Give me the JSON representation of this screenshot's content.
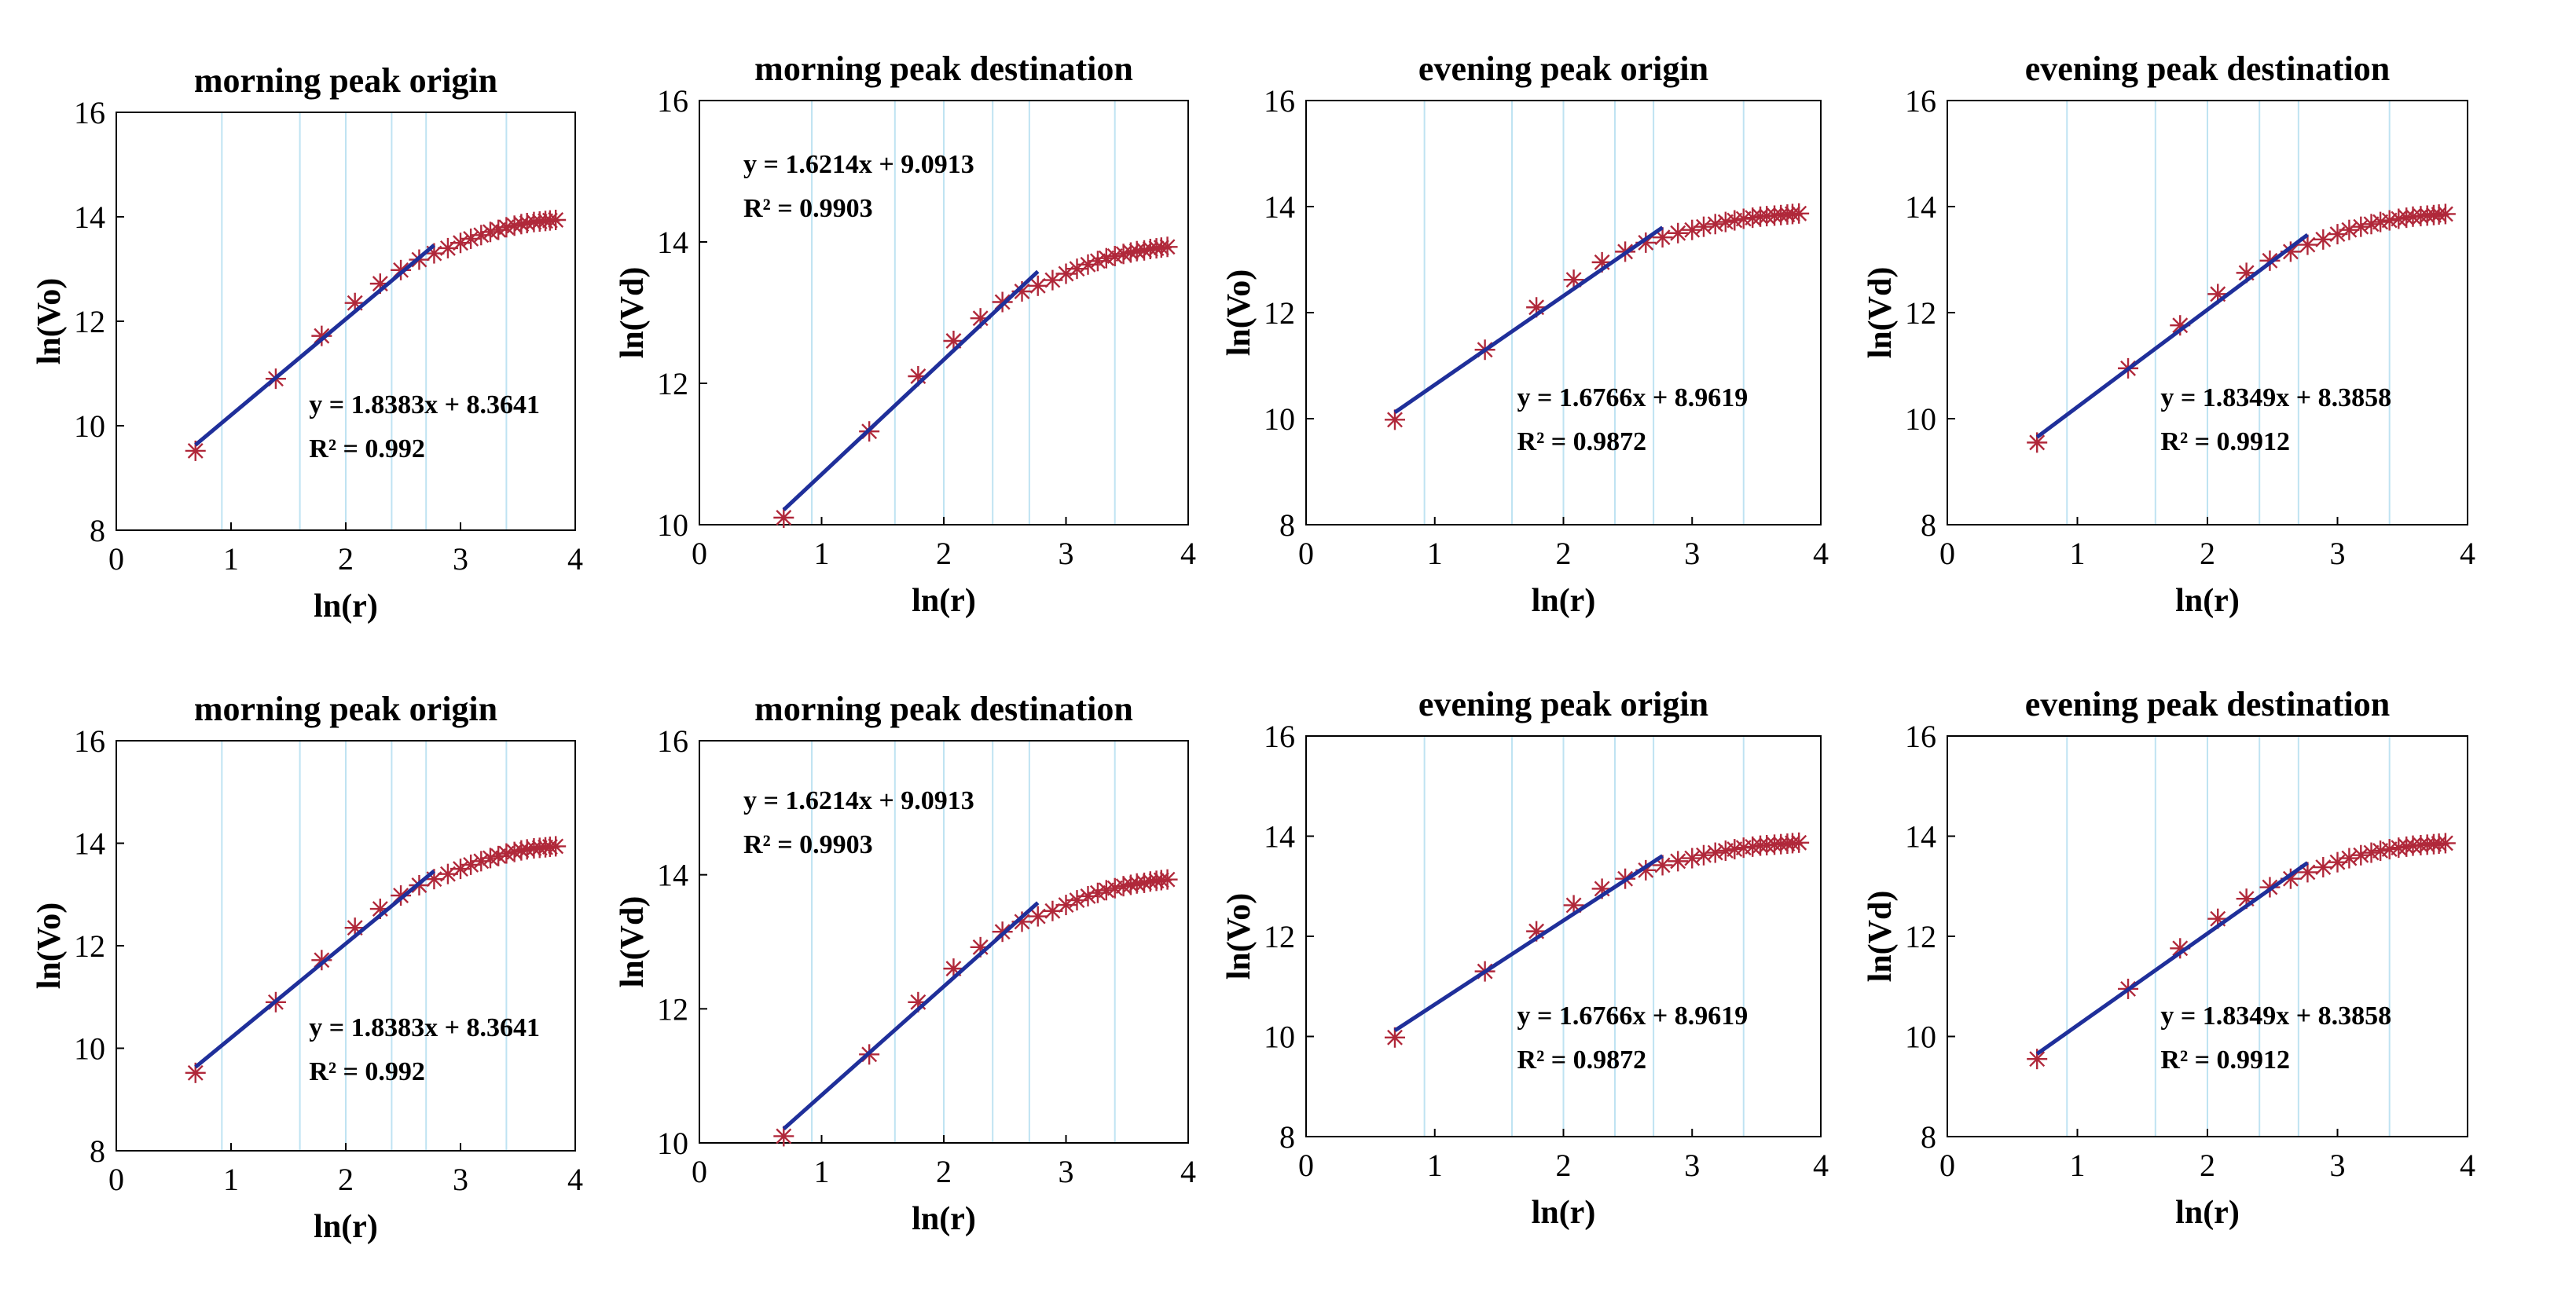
{
  "colors": {
    "fit_line": "#1f2f9a",
    "markers": "#b0283a",
    "grid": "#bfe3f2",
    "axes": "#000000"
  },
  "chart_data": [
    {
      "type": "scatter",
      "title": "morning peak origin",
      "xlabel": "ln(r)",
      "ylabel": "ln(Vo)",
      "xlim": [
        0,
        4
      ],
      "ylim": [
        8,
        16
      ],
      "xticks": [
        "0",
        "1",
        "2",
        "3",
        "4"
      ],
      "yticks": [
        "8",
        "10",
        "12",
        "14",
        "16"
      ],
      "grid_x": [
        0.92,
        1.6,
        2.0,
        2.4,
        2.7,
        3.4
      ],
      "equation": "y = 1.8383x + 8.3641",
      "r2": "R² = 0.992",
      "fit": {
        "slope": 1.8383,
        "intercept": 8.3641,
        "x_range": [
          0.69,
          2.77
        ]
      },
      "points": [
        [
          0.69,
          9.52
        ],
        [
          1.39,
          10.9
        ],
        [
          1.79,
          11.72
        ],
        [
          2.08,
          12.35
        ],
        [
          2.3,
          12.72
        ],
        [
          2.48,
          12.98
        ],
        [
          2.64,
          13.18
        ],
        [
          2.77,
          13.3
        ],
        [
          2.89,
          13.4
        ],
        [
          3.0,
          13.5
        ],
        [
          3.09,
          13.58
        ],
        [
          3.18,
          13.65
        ],
        [
          3.26,
          13.71
        ],
        [
          3.33,
          13.75
        ],
        [
          3.4,
          13.8
        ],
        [
          3.47,
          13.83
        ],
        [
          3.53,
          13.86
        ],
        [
          3.58,
          13.88
        ],
        [
          3.64,
          13.9
        ],
        [
          3.69,
          13.91
        ],
        [
          3.74,
          13.92
        ],
        [
          3.78,
          13.93
        ],
        [
          3.83,
          13.94
        ]
      ]
    },
    {
      "type": "scatter",
      "title": "morning peak destination",
      "xlabel": "ln(r)",
      "ylabel": "ln(Vd)",
      "xlim": [
        0,
        4
      ],
      "ylim": [
        10,
        16
      ],
      "xticks": [
        "0",
        "1",
        "2",
        "3",
        "4"
      ],
      "yticks": [
        "10",
        "12",
        "14",
        "16"
      ],
      "grid_x": [
        0.92,
        1.6,
        2.0,
        2.4,
        2.7,
        3.4
      ],
      "equation": "y = 1.6214x + 9.0913",
      "r2": "R² = 0.9903",
      "fit": {
        "slope": 1.6214,
        "intercept": 9.0913,
        "x_range": [
          0.69,
          2.77
        ]
      },
      "points": [
        [
          0.69,
          10.1
        ],
        [
          1.39,
          11.32
        ],
        [
          1.79,
          12.1
        ],
        [
          2.08,
          12.6
        ],
        [
          2.3,
          12.92
        ],
        [
          2.48,
          13.15
        ],
        [
          2.64,
          13.3
        ],
        [
          2.77,
          13.38
        ],
        [
          2.89,
          13.46
        ],
        [
          3.0,
          13.55
        ],
        [
          3.09,
          13.62
        ],
        [
          3.18,
          13.68
        ],
        [
          3.26,
          13.73
        ],
        [
          3.33,
          13.77
        ],
        [
          3.4,
          13.8
        ],
        [
          3.47,
          13.83
        ],
        [
          3.53,
          13.85
        ],
        [
          3.58,
          13.87
        ],
        [
          3.64,
          13.88
        ],
        [
          3.69,
          13.9
        ],
        [
          3.74,
          13.91
        ],
        [
          3.78,
          13.92
        ],
        [
          3.83,
          13.93
        ]
      ]
    },
    {
      "type": "scatter",
      "title": "evening peak origin",
      "xlabel": "ln(r)",
      "ylabel": "ln(Vo)",
      "xlim": [
        0,
        4
      ],
      "ylim": [
        8,
        16
      ],
      "xticks": [
        "0",
        "1",
        "2",
        "3",
        "4"
      ],
      "yticks": [
        "8",
        "10",
        "12",
        "14",
        "16"
      ],
      "grid_x": [
        0.92,
        1.6,
        2.0,
        2.4,
        2.7,
        3.4
      ],
      "equation": "y = 1.6766x + 8.9619",
      "r2": "R² = 0.9872",
      "fit": {
        "slope": 1.6766,
        "intercept": 8.9619,
        "x_range": [
          0.69,
          2.77
        ]
      },
      "points": [
        [
          0.69,
          9.98
        ],
        [
          1.39,
          11.3
        ],
        [
          1.79,
          12.1
        ],
        [
          2.08,
          12.62
        ],
        [
          2.3,
          12.95
        ],
        [
          2.48,
          13.15
        ],
        [
          2.64,
          13.32
        ],
        [
          2.77,
          13.42
        ],
        [
          2.89,
          13.5
        ],
        [
          3.0,
          13.56
        ],
        [
          3.09,
          13.62
        ],
        [
          3.18,
          13.67
        ],
        [
          3.26,
          13.71
        ],
        [
          3.33,
          13.74
        ],
        [
          3.4,
          13.77
        ],
        [
          3.47,
          13.79
        ],
        [
          3.53,
          13.81
        ],
        [
          3.58,
          13.82
        ],
        [
          3.64,
          13.83
        ],
        [
          3.69,
          13.84
        ],
        [
          3.74,
          13.85
        ],
        [
          3.78,
          13.86
        ],
        [
          3.83,
          13.87
        ]
      ]
    },
    {
      "type": "scatter",
      "title": "evening peak destination",
      "xlabel": "ln(r)",
      "ylabel": "ln(Vd)",
      "xlim": [
        0,
        4
      ],
      "ylim": [
        8,
        16
      ],
      "xticks": [
        "0",
        "1",
        "2",
        "3",
        "4"
      ],
      "yticks": [
        "8",
        "10",
        "12",
        "14",
        "16"
      ],
      "grid_x": [
        0.92,
        1.6,
        2.0,
        2.4,
        2.7,
        3.4
      ],
      "equation": "y = 1.8349x + 8.3858",
      "r2": "R² = 0.9912",
      "fit": {
        "slope": 1.8349,
        "intercept": 8.3858,
        "x_range": [
          0.69,
          2.77
        ]
      },
      "points": [
        [
          0.69,
          9.55
        ],
        [
          1.39,
          10.95
        ],
        [
          1.79,
          11.76
        ],
        [
          2.08,
          12.35
        ],
        [
          2.3,
          12.75
        ],
        [
          2.48,
          12.98
        ],
        [
          2.64,
          13.15
        ],
        [
          2.77,
          13.28
        ],
        [
          2.89,
          13.38
        ],
        [
          3.0,
          13.48
        ],
        [
          3.09,
          13.56
        ],
        [
          3.18,
          13.62
        ],
        [
          3.26,
          13.67
        ],
        [
          3.33,
          13.71
        ],
        [
          3.4,
          13.74
        ],
        [
          3.47,
          13.77
        ],
        [
          3.53,
          13.79
        ],
        [
          3.58,
          13.81
        ],
        [
          3.64,
          13.82
        ],
        [
          3.69,
          13.83
        ],
        [
          3.74,
          13.84
        ],
        [
          3.78,
          13.85
        ],
        [
          3.83,
          13.86
        ]
      ]
    },
    {
      "type": "scatter",
      "title": "morning peak origin",
      "xlabel": "ln(r)",
      "ylabel": "ln(Vo)",
      "xlim": [
        0,
        4
      ],
      "ylim": [
        8,
        16
      ],
      "xticks": [
        "0",
        "1",
        "2",
        "3",
        "4"
      ],
      "yticks": [
        "8",
        "10",
        "12",
        "14",
        "16"
      ],
      "grid_x": [
        0.92,
        1.6,
        2.0,
        2.4,
        2.7,
        3.4
      ],
      "equation": "y = 1.8383x + 8.3641",
      "r2": "R² = 0.992",
      "fit": {
        "slope": 1.8383,
        "intercept": 8.3641,
        "x_range": [
          0.69,
          2.77
        ]
      },
      "points": [
        [
          0.69,
          9.52
        ],
        [
          1.39,
          10.9
        ],
        [
          1.79,
          11.72
        ],
        [
          2.08,
          12.35
        ],
        [
          2.3,
          12.72
        ],
        [
          2.48,
          12.98
        ],
        [
          2.64,
          13.18
        ],
        [
          2.77,
          13.3
        ],
        [
          2.89,
          13.4
        ],
        [
          3.0,
          13.5
        ],
        [
          3.09,
          13.58
        ],
        [
          3.18,
          13.65
        ],
        [
          3.26,
          13.71
        ],
        [
          3.33,
          13.75
        ],
        [
          3.4,
          13.8
        ],
        [
          3.47,
          13.83
        ],
        [
          3.53,
          13.86
        ],
        [
          3.58,
          13.88
        ],
        [
          3.64,
          13.9
        ],
        [
          3.69,
          13.91
        ],
        [
          3.74,
          13.92
        ],
        [
          3.78,
          13.93
        ],
        [
          3.83,
          13.94
        ]
      ]
    },
    {
      "type": "scatter",
      "title": "morning peak destination",
      "xlabel": "ln(r)",
      "ylabel": "ln(Vd)",
      "xlim": [
        0,
        4
      ],
      "ylim": [
        10,
        16
      ],
      "xticks": [
        "0",
        "1",
        "2",
        "3",
        "4"
      ],
      "yticks": [
        "10",
        "12",
        "14",
        "16"
      ],
      "grid_x": [
        0.92,
        1.6,
        2.0,
        2.4,
        2.7,
        3.4
      ],
      "equation": "y = 1.6214x + 9.0913",
      "r2": "R² = 0.9903",
      "fit": {
        "slope": 1.6214,
        "intercept": 9.0913,
        "x_range": [
          0.69,
          2.77
        ]
      },
      "points": [
        [
          0.69,
          10.1
        ],
        [
          1.39,
          11.32
        ],
        [
          1.79,
          12.1
        ],
        [
          2.08,
          12.6
        ],
        [
          2.3,
          12.92
        ],
        [
          2.48,
          13.15
        ],
        [
          2.64,
          13.3
        ],
        [
          2.77,
          13.38
        ],
        [
          2.89,
          13.46
        ],
        [
          3.0,
          13.55
        ],
        [
          3.09,
          13.62
        ],
        [
          3.18,
          13.68
        ],
        [
          3.26,
          13.73
        ],
        [
          3.33,
          13.77
        ],
        [
          3.4,
          13.8
        ],
        [
          3.47,
          13.83
        ],
        [
          3.53,
          13.85
        ],
        [
          3.58,
          13.87
        ],
        [
          3.64,
          13.88
        ],
        [
          3.69,
          13.9
        ],
        [
          3.74,
          13.91
        ],
        [
          3.78,
          13.92
        ],
        [
          3.83,
          13.93
        ]
      ]
    },
    {
      "type": "scatter",
      "title": "evening peak origin",
      "xlabel": "ln(r)",
      "ylabel": "ln(Vo)",
      "xlim": [
        0,
        4
      ],
      "ylim": [
        8,
        16
      ],
      "xticks": [
        "0",
        "1",
        "2",
        "3",
        "4"
      ],
      "yticks": [
        "8",
        "10",
        "12",
        "14",
        "16"
      ],
      "grid_x": [
        0.92,
        1.6,
        2.0,
        2.4,
        2.7,
        3.4
      ],
      "equation": "y = 1.6766x + 8.9619",
      "r2": "R² = 0.9872",
      "fit": {
        "slope": 1.6766,
        "intercept": 8.9619,
        "x_range": [
          0.69,
          2.77
        ]
      },
      "points": [
        [
          0.69,
          9.98
        ],
        [
          1.39,
          11.3
        ],
        [
          1.79,
          12.1
        ],
        [
          2.08,
          12.62
        ],
        [
          2.3,
          12.95
        ],
        [
          2.48,
          13.15
        ],
        [
          2.64,
          13.32
        ],
        [
          2.77,
          13.42
        ],
        [
          2.89,
          13.5
        ],
        [
          3.0,
          13.56
        ],
        [
          3.09,
          13.62
        ],
        [
          3.18,
          13.67
        ],
        [
          3.26,
          13.71
        ],
        [
          3.33,
          13.74
        ],
        [
          3.4,
          13.77
        ],
        [
          3.47,
          13.79
        ],
        [
          3.53,
          13.81
        ],
        [
          3.58,
          13.82
        ],
        [
          3.64,
          13.83
        ],
        [
          3.69,
          13.84
        ],
        [
          3.74,
          13.85
        ],
        [
          3.78,
          13.86
        ],
        [
          3.83,
          13.87
        ]
      ]
    },
    {
      "type": "scatter",
      "title": "evening peak destination",
      "xlabel": "ln(r)",
      "ylabel": "ln(Vd)",
      "xlim": [
        0,
        4
      ],
      "ylim": [
        8,
        16
      ],
      "xticks": [
        "0",
        "1",
        "2",
        "3",
        "4"
      ],
      "yticks": [
        "8",
        "10",
        "12",
        "14",
        "16"
      ],
      "grid_x": [
        0.92,
        1.6,
        2.0,
        2.4,
        2.7,
        3.4
      ],
      "equation": "y = 1.8349x + 8.3858",
      "r2": "R² = 0.9912",
      "fit": {
        "slope": 1.8349,
        "intercept": 8.3858,
        "x_range": [
          0.69,
          2.77
        ]
      },
      "points": [
        [
          0.69,
          9.55
        ],
        [
          1.39,
          10.95
        ],
        [
          1.79,
          11.76
        ],
        [
          2.08,
          12.35
        ],
        [
          2.3,
          12.75
        ],
        [
          2.48,
          12.98
        ],
        [
          2.64,
          13.15
        ],
        [
          2.77,
          13.28
        ],
        [
          2.89,
          13.38
        ],
        [
          3.0,
          13.48
        ],
        [
          3.09,
          13.56
        ],
        [
          3.18,
          13.62
        ],
        [
          3.26,
          13.67
        ],
        [
          3.33,
          13.71
        ],
        [
          3.4,
          13.74
        ],
        [
          3.47,
          13.77
        ],
        [
          3.53,
          13.79
        ],
        [
          3.58,
          13.81
        ],
        [
          3.64,
          13.82
        ],
        [
          3.69,
          13.83
        ],
        [
          3.74,
          13.84
        ],
        [
          3.78,
          13.85
        ],
        [
          3.83,
          13.86
        ]
      ]
    }
  ]
}
